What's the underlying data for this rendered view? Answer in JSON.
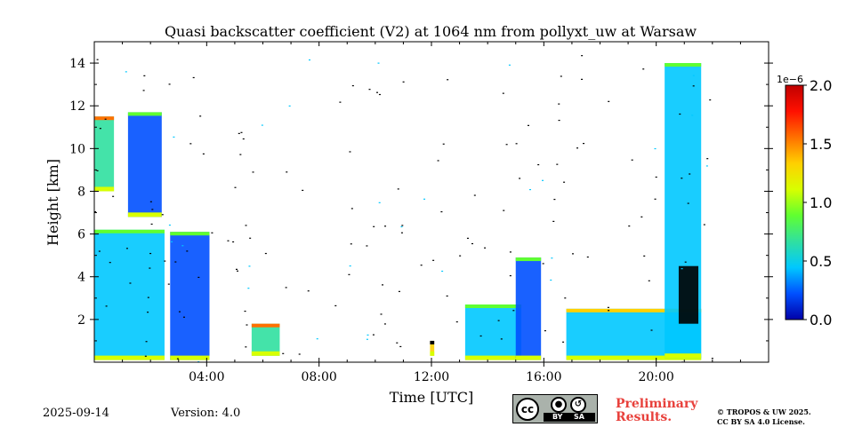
{
  "chart_data": {
    "type": "heatmap",
    "title": "Quasi backscatter coefficient (V2) at 1064 nm from pollyxt_uw at Warsaw",
    "xlabel": "Time [UTC]",
    "ylabel": "Height [km]",
    "xlim_hours": [
      0,
      24
    ],
    "ylim_km": [
      0,
      15
    ],
    "x_ticks": [
      {
        "hour": 4,
        "label": "04:00"
      },
      {
        "hour": 8,
        "label": "08:00"
      },
      {
        "hour": 12,
        "label": "12:00"
      },
      {
        "hour": 16,
        "label": "16:00"
      },
      {
        "hour": 20,
        "label": "20:00"
      }
    ],
    "y_ticks": [
      {
        "km": 2,
        "label": "2"
      },
      {
        "km": 4,
        "label": "4"
      },
      {
        "km": 6,
        "label": "6"
      },
      {
        "km": 8,
        "label": "8"
      },
      {
        "km": 10,
        "label": "10"
      },
      {
        "km": 12,
        "label": "12"
      },
      {
        "km": 14,
        "label": "14"
      }
    ],
    "colorbar": {
      "scale_label": "1e−6",
      "vmin": 0.0,
      "vmax": 2.0,
      "ticks": [
        {
          "value": 0.0,
          "label": "0.0"
        },
        {
          "value": 0.5,
          "label": "0.5"
        },
        {
          "value": 1.0,
          "label": "1.0"
        },
        {
          "value": 1.5,
          "label": "1.5"
        },
        {
          "value": 2.0,
          "label": "2.0"
        }
      ],
      "colors": [
        "#0000a8",
        "#0050ff",
        "#00c8ff",
        "#30e0a0",
        "#60ff30",
        "#d8ff00",
        "#ffd000",
        "#ff7000",
        "#ff1000",
        "#c00000"
      ]
    },
    "features": [
      {
        "name": "boundary-layer-early",
        "t0": 0.0,
        "t1": 2.5,
        "h0": 0.1,
        "h1": 6.2,
        "level": 0.35
      },
      {
        "name": "boundary-layer-pre-gap",
        "t0": 2.7,
        "t1": 4.1,
        "h0": 0.1,
        "h1": 6.1,
        "level": 0.3
      },
      {
        "name": "cirrus-early",
        "t0": 1.2,
        "t1": 2.4,
        "h0": 6.8,
        "h1": 11.7,
        "level": 0.3
      },
      {
        "name": "cirrus-edge",
        "t0": 0.0,
        "t1": 0.7,
        "h0": 8.0,
        "h1": 11.5,
        "level": 0.6
      },
      {
        "name": "aerosol-layer-06h",
        "t0": 5.6,
        "t1": 6.6,
        "h0": 0.3,
        "h1": 1.8,
        "level": 0.6
      },
      {
        "name": "noon-plume",
        "t0": 11.95,
        "t1": 12.1,
        "h0": 0.3,
        "h1": 1.0,
        "level": 1.4
      },
      {
        "name": "boundary-layer-afternoon",
        "t0": 13.2,
        "t1": 15.2,
        "h0": 0.1,
        "h1": 2.7,
        "level": 0.35
      },
      {
        "name": "boundary-layer-1530",
        "t0": 15.0,
        "t1": 15.9,
        "h0": 0.1,
        "h1": 4.9,
        "level": 0.3
      },
      {
        "name": "evening-layer",
        "t0": 16.8,
        "t1": 21.6,
        "h0": 0.1,
        "h1": 2.5,
        "level": 0.5
      },
      {
        "name": "cloud-column-21h",
        "t0": 20.3,
        "t1": 21.6,
        "h0": 0.2,
        "h1": 14.0,
        "level": 0.35
      },
      {
        "name": "saturated-cloud-21h",
        "t0": 20.8,
        "t1": 21.5,
        "h0": 1.8,
        "h1": 4.5,
        "level": 2.5
      }
    ]
  },
  "footer": {
    "date": "2025-09-14",
    "version": "Version: 4.0",
    "preliminary_line1": "Preliminary",
    "preliminary_line2": "Results.",
    "copyright_line1": "© TROPOS & UW 2025.",
    "copyright_line2": "CC BY SA 4.0 License.",
    "cc_badge": {
      "cc": "cc",
      "by_icon": "person-icon",
      "sa_icon": "share-alike-icon",
      "by": "BY",
      "sa": "SA"
    }
  }
}
